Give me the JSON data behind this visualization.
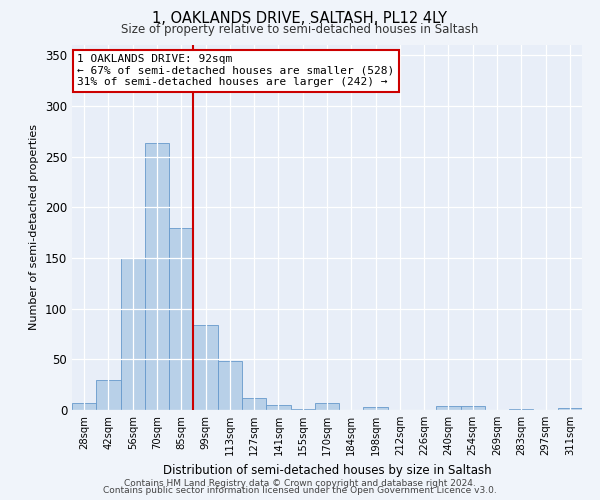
{
  "title": "1, OAKLANDS DRIVE, SALTASH, PL12 4LY",
  "subtitle": "Size of property relative to semi-detached houses in Saltash",
  "xlabel": "Distribution of semi-detached houses by size in Saltash",
  "ylabel": "Number of semi-detached properties",
  "bar_labels": [
    "28sqm",
    "42sqm",
    "56sqm",
    "70sqm",
    "85sqm",
    "99sqm",
    "113sqm",
    "127sqm",
    "141sqm",
    "155sqm",
    "170sqm",
    "184sqm",
    "198sqm",
    "212sqm",
    "226sqm",
    "240sqm",
    "254sqm",
    "269sqm",
    "283sqm",
    "297sqm",
    "311sqm"
  ],
  "bar_values": [
    7,
    30,
    150,
    263,
    180,
    84,
    48,
    12,
    5,
    1,
    7,
    0,
    3,
    0,
    0,
    4,
    4,
    0,
    1,
    0,
    2
  ],
  "bar_color": "#b8d0e8",
  "bar_edge_color": "#6699cc",
  "vline_x": 4.5,
  "vline_color": "#cc0000",
  "ylim": [
    0,
    360
  ],
  "yticks": [
    0,
    50,
    100,
    150,
    200,
    250,
    300,
    350
  ],
  "annotation_title": "1 OAKLANDS DRIVE: 92sqm",
  "annotation_line1": "← 67% of semi-detached houses are smaller (528)",
  "annotation_line2": "31% of semi-detached houses are larger (242) →",
  "footnote1": "Contains HM Land Registry data © Crown copyright and database right 2024.",
  "footnote2": "Contains public sector information licensed under the Open Government Licence v3.0.",
  "background_color": "#f0f4fa",
  "plot_bg_color": "#e8eef8"
}
